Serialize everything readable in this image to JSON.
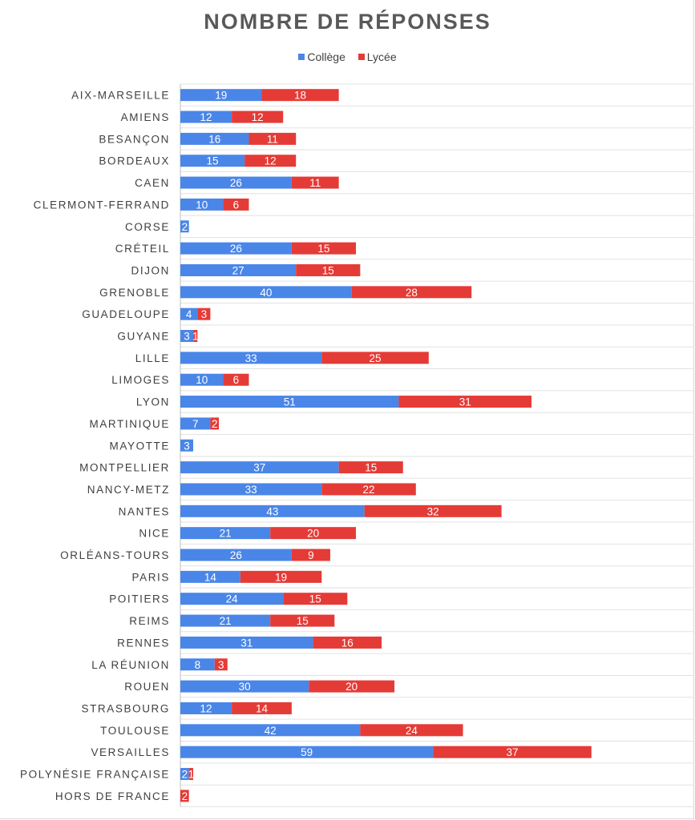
{
  "chart_data": {
    "type": "bar",
    "orientation": "horizontal",
    "stacked": true,
    "title": "NOMBRE DE RÉPONSES",
    "legend_position": "top",
    "grid": true,
    "xlim": [
      0,
      120
    ],
    "categories": [
      "AIX-MARSEILLE",
      "AMIENS",
      "BESANÇON",
      "BORDEAUX",
      "CAEN",
      "CLERMONT-FERRAND",
      "CORSE",
      "CRÉTEIL",
      "DIJON",
      "GRENOBLE",
      "GUADELOUPE",
      "GUYANE",
      "LILLE",
      "LIMOGES",
      "LYON",
      "MARTINIQUE",
      "MAYOTTE",
      "MONTPELLIER",
      "NANCY-METZ",
      "NANTES",
      "NICE",
      "ORLÉANS-TOURS",
      "PARIS",
      "POITIERS",
      "REIMS",
      "RENNES",
      "LA RÉUNION",
      "ROUEN",
      "STRASBOURG",
      "TOULOUSE",
      "VERSAILLES",
      "POLYNÉSIE FRANÇAISE",
      "HORS DE FRANCE"
    ],
    "series": [
      {
        "name": "Collège",
        "color": "#4a86e8",
        "values": [
          19,
          12,
          16,
          15,
          26,
          10,
          2,
          26,
          27,
          40,
          4,
          3,
          33,
          10,
          51,
          7,
          3,
          37,
          33,
          43,
          21,
          26,
          14,
          24,
          21,
          31,
          8,
          30,
          12,
          42,
          59,
          2,
          0
        ]
      },
      {
        "name": "Lycée",
        "color": "#e53b36",
        "values": [
          18,
          12,
          11,
          12,
          11,
          6,
          0,
          15,
          15,
          28,
          3,
          1,
          25,
          6,
          31,
          2,
          0,
          15,
          22,
          32,
          20,
          9,
          19,
          15,
          15,
          16,
          3,
          20,
          14,
          24,
          37,
          1,
          2
        ]
      }
    ]
  }
}
